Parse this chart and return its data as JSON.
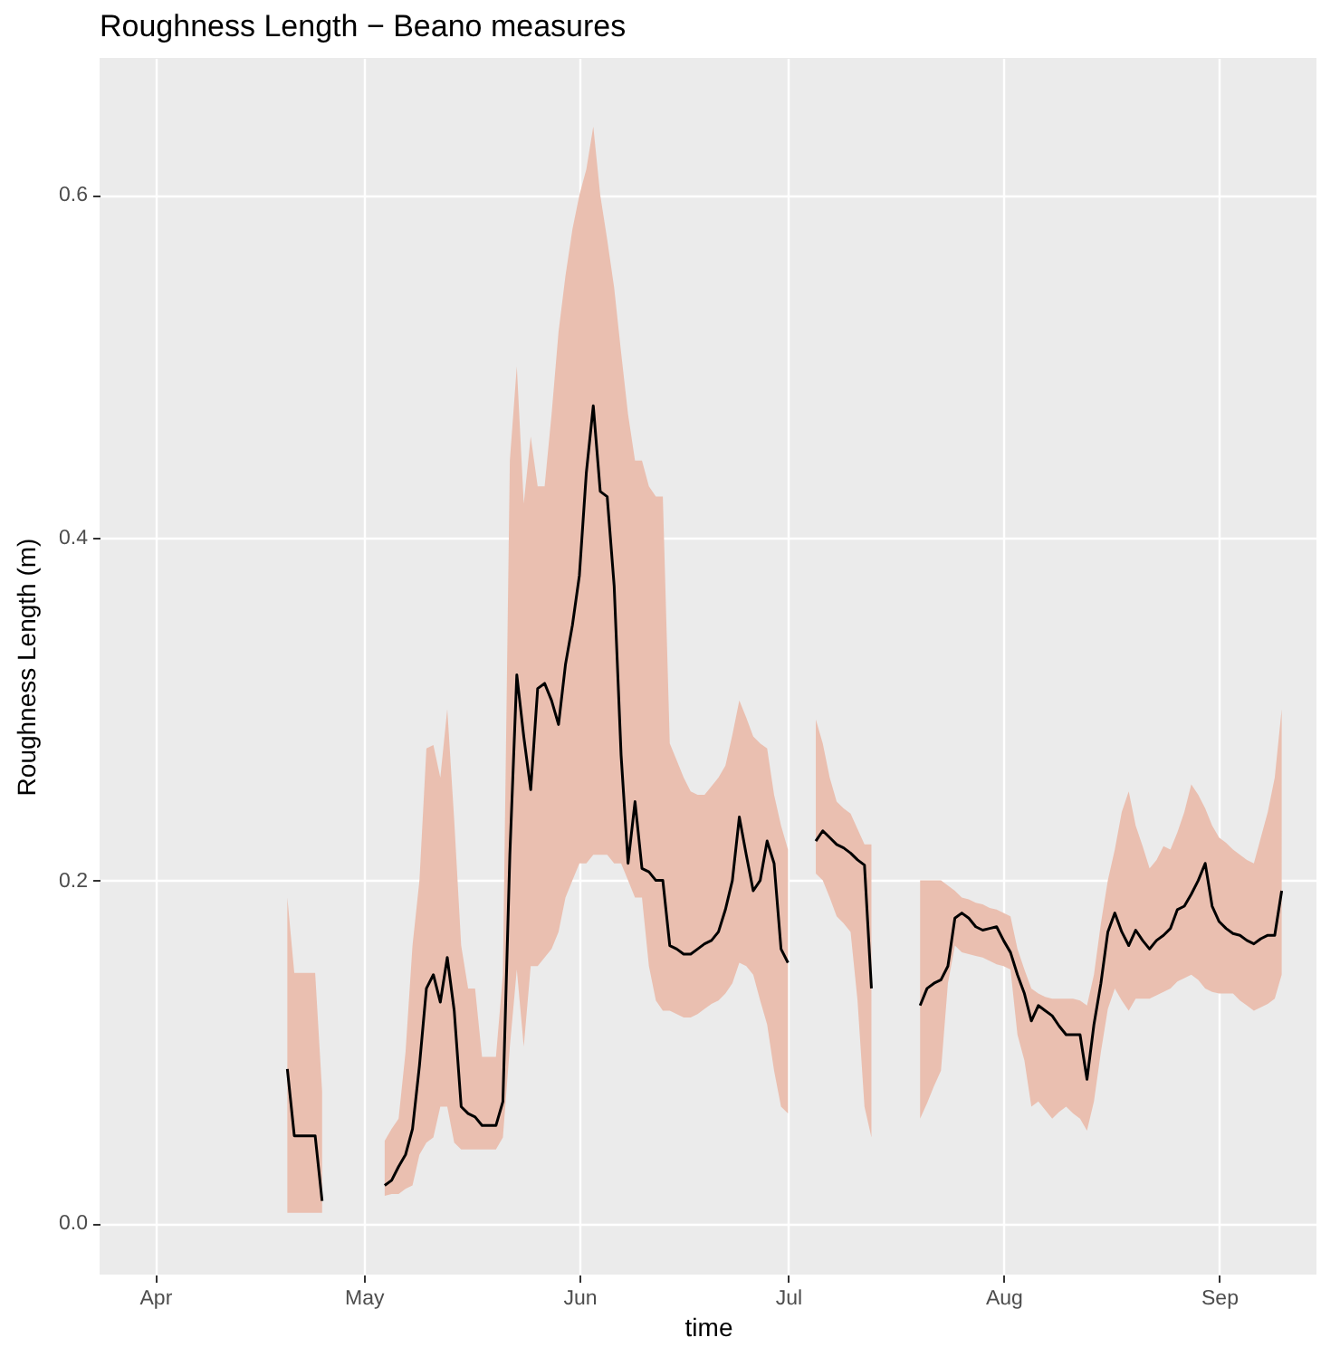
{
  "chart_data": {
    "type": "line",
    "title": "Roughness Length − Beano measures",
    "xlabel": "time",
    "ylabel": "Roughness Length (m)",
    "grid": true,
    "line_style": "solid",
    "xlim": [
      "--03-24",
      "--09-15"
    ],
    "xticks": [
      {
        "value": "--04-01",
        "label": "Apr"
      },
      {
        "value": "--05-01",
        "label": "May"
      },
      {
        "value": "--06-01",
        "label": "Jun"
      },
      {
        "value": "--07-01",
        "label": "Jul"
      },
      {
        "value": "--08-01",
        "label": "Aug"
      },
      {
        "value": "--09-01",
        "label": "Sep"
      }
    ],
    "ylim": [
      -0.03,
      0.68
    ],
    "yticks": [
      {
        "value": 0,
        "label": "0.0"
      },
      0.2,
      0.4,
      0.6
    ],
    "x": [
      "--04-20",
      "--04-21",
      "--04-22",
      "--04-23",
      "--04-24",
      "--04-25",
      "--04-26",
      "--05-04",
      "--05-05",
      "--05-06",
      "--05-07",
      "--05-08",
      "--05-09",
      "--05-10",
      "--05-11",
      "--05-12",
      "--05-13",
      "--05-14",
      "--05-15",
      "--05-16",
      "--05-17",
      "--05-18",
      "--05-19",
      "--05-20",
      "--05-21",
      "--05-22",
      "--05-23",
      "--05-24",
      "--05-25",
      "--05-26",
      "--05-27",
      "--05-28",
      "--05-29",
      "--05-30",
      "--05-31",
      "--06-01",
      "--06-02",
      "--06-03",
      "--06-04",
      "--06-05",
      "--06-06",
      "--06-07",
      "--06-08",
      "--06-09",
      "--06-10",
      "--06-11",
      "--06-12",
      "--06-13",
      "--06-14",
      "--06-15",
      "--06-16",
      "--06-17",
      "--06-18",
      "--06-19",
      "--06-20",
      "--06-21",
      "--06-22",
      "--06-23",
      "--06-24",
      "--06-25",
      "--06-26",
      "--06-27",
      "--06-28",
      "--06-29",
      "--06-30",
      "--07-01",
      "--07-02",
      "--07-05",
      "--07-06",
      "--07-07",
      "--07-08",
      "--07-09",
      "--07-10",
      "--07-11",
      "--07-12",
      "--07-13",
      "--07-14",
      "--07-20",
      "--07-21",
      "--07-22",
      "--07-23",
      "--07-24",
      "--07-25",
      "--07-26",
      "--07-27",
      "--07-28",
      "--07-29",
      "--07-30",
      "--07-31",
      "--08-01",
      "--08-02",
      "--08-03",
      "--08-04",
      "--08-05",
      "--08-06",
      "--08-07",
      "--08-08",
      "--08-09",
      "--08-10",
      "--08-11",
      "--08-12",
      "--08-13",
      "--08-14",
      "--08-15",
      "--08-16",
      "--08-17",
      "--08-18",
      "--08-19",
      "--08-20",
      "--08-21",
      "--08-22",
      "--08-23",
      "--08-24",
      "--08-25",
      "--08-26",
      "--08-27",
      "--08-28",
      "--08-29",
      "--08-30",
      "--08-31",
      "--09-01",
      "--09-02",
      "--09-03",
      "--09-04",
      "--09-05",
      "--09-06",
      "--09-07",
      "--09-08",
      "--09-09",
      "--09-10"
    ],
    "series": [
      {
        "color": "#000000",
        "values": [
          0.09,
          0.051,
          0.051,
          0.051,
          0.051,
          0.013,
          null,
          0.022,
          0.025,
          0.033,
          0.04,
          0.055,
          0.092,
          0.137,
          0.145,
          0.129,
          0.155,
          0.124,
          0.068,
          0.064,
          0.062,
          0.057,
          0.057,
          0.057,
          0.071,
          0.215,
          0.32,
          0.284,
          0.253,
          0.312,
          0.315,
          0.305,
          0.291,
          0.326,
          0.349,
          0.378,
          0.438,
          0.477,
          0.427,
          0.424,
          0.372,
          0.273,
          0.21,
          0.246,
          0.207,
          0.205,
          0.2,
          0.2,
          0.162,
          0.16,
          0.157,
          0.157,
          0.16,
          0.163,
          0.165,
          0.17,
          0.183,
          0.2,
          0.237,
          0.215,
          0.194,
          0.2,
          0.223,
          0.21,
          0.16,
          0.152,
          null,
          0.223,
          0.229,
          0.225,
          0.221,
          0.219,
          0.216,
          0.212,
          0.209,
          0.137,
          null,
          0.127,
          0.137,
          0.14,
          0.142,
          0.15,
          0.178,
          0.181,
          0.178,
          0.173,
          0.171,
          0.172,
          0.173,
          0.165,
          0.158,
          0.145,
          0.134,
          0.118,
          0.127,
          0.124,
          0.121,
          0.115,
          0.11,
          0.11,
          0.11,
          0.084,
          0.116,
          0.14,
          0.17,
          0.181,
          0.17,
          0.162,
          0.171,
          0.165,
          0.16,
          0.165,
          0.168,
          0.172,
          0.183,
          0.185,
          0.192,
          0.2,
          0.21,
          0.185,
          0.176,
          0.172,
          0.169,
          0.168,
          0.165,
          0.163,
          0.166,
          0.168,
          0.168,
          0.194
        ],
        "lower": [
          0.006,
          0.006,
          0.006,
          0.006,
          0.006,
          0.006,
          null,
          0.016,
          0.017,
          0.017,
          0.02,
          0.022,
          0.04,
          0.047,
          0.05,
          0.068,
          0.068,
          0.047,
          0.043,
          0.043,
          0.043,
          0.043,
          0.043,
          0.043,
          0.05,
          0.103,
          0.148,
          0.103,
          0.15,
          0.15,
          0.155,
          0.16,
          0.17,
          0.19,
          0.2,
          0.21,
          0.21,
          0.215,
          0.215,
          0.215,
          0.21,
          0.21,
          0.2,
          0.19,
          0.19,
          0.15,
          0.13,
          0.124,
          0.124,
          0.122,
          0.12,
          0.12,
          0.122,
          0.125,
          0.128,
          0.13,
          0.134,
          0.14,
          0.152,
          0.15,
          0.145,
          0.13,
          0.116,
          0.089,
          0.068,
          0.064,
          null,
          0.204,
          0.2,
          0.19,
          0.179,
          0.175,
          0.17,
          0.13,
          0.068,
          0.05,
          null,
          0.061,
          0.07,
          0.08,
          0.089,
          0.14,
          0.162,
          0.158,
          0.157,
          0.156,
          0.155,
          0.153,
          0.151,
          0.15,
          0.148,
          0.11,
          0.095,
          0.068,
          0.071,
          0.066,
          0.061,
          0.065,
          0.068,
          0.064,
          0.061,
          0.054,
          0.071,
          0.1,
          0.125,
          0.137,
          0.13,
          0.124,
          0.131,
          0.131,
          0.131,
          0.133,
          0.135,
          0.137,
          0.141,
          0.143,
          0.145,
          0.142,
          0.137,
          0.135,
          0.134,
          0.134,
          0.134,
          0.13,
          0.127,
          0.124,
          0.126,
          0.128,
          0.131,
          0.145
        ],
        "upper": [
          0.19,
          0.146,
          0.146,
          0.146,
          0.146,
          0.077,
          null,
          0.048,
          0.055,
          0.061,
          0.1,
          0.162,
          0.2,
          0.277,
          0.279,
          0.26,
          0.3,
          0.235,
          0.162,
          0.137,
          0.137,
          0.097,
          0.097,
          0.097,
          0.145,
          0.445,
          0.5,
          0.42,
          0.459,
          0.43,
          0.43,
          0.472,
          0.52,
          0.553,
          0.58,
          0.6,
          0.615,
          0.64,
          0.6,
          0.574,
          0.546,
          0.508,
          0.472,
          0.445,
          0.445,
          0.43,
          0.424,
          0.424,
          0.28,
          0.27,
          0.26,
          0.252,
          0.25,
          0.25,
          0.255,
          0.26,
          0.267,
          0.285,
          0.305,
          0.295,
          0.284,
          0.28,
          0.277,
          0.25,
          0.232,
          0.218,
          null,
          0.294,
          0.28,
          0.26,
          0.246,
          0.242,
          0.239,
          0.23,
          0.221,
          0.221,
          null,
          0.2,
          0.2,
          0.2,
          0.2,
          0.197,
          0.194,
          0.19,
          0.189,
          0.187,
          0.186,
          0.184,
          0.183,
          0.181,
          0.179,
          0.16,
          0.148,
          0.137,
          0.134,
          0.132,
          0.131,
          0.131,
          0.131,
          0.131,
          0.13,
          0.127,
          0.145,
          0.175,
          0.2,
          0.218,
          0.24,
          0.252,
          0.232,
          0.22,
          0.207,
          0.212,
          0.22,
          0.218,
          0.228,
          0.24,
          0.256,
          0.25,
          0.242,
          0.232,
          0.225,
          0.222,
          0.218,
          0.215,
          0.212,
          0.21,
          0.225,
          0.24,
          0.26,
          0.3
        ]
      }
    ]
  }
}
